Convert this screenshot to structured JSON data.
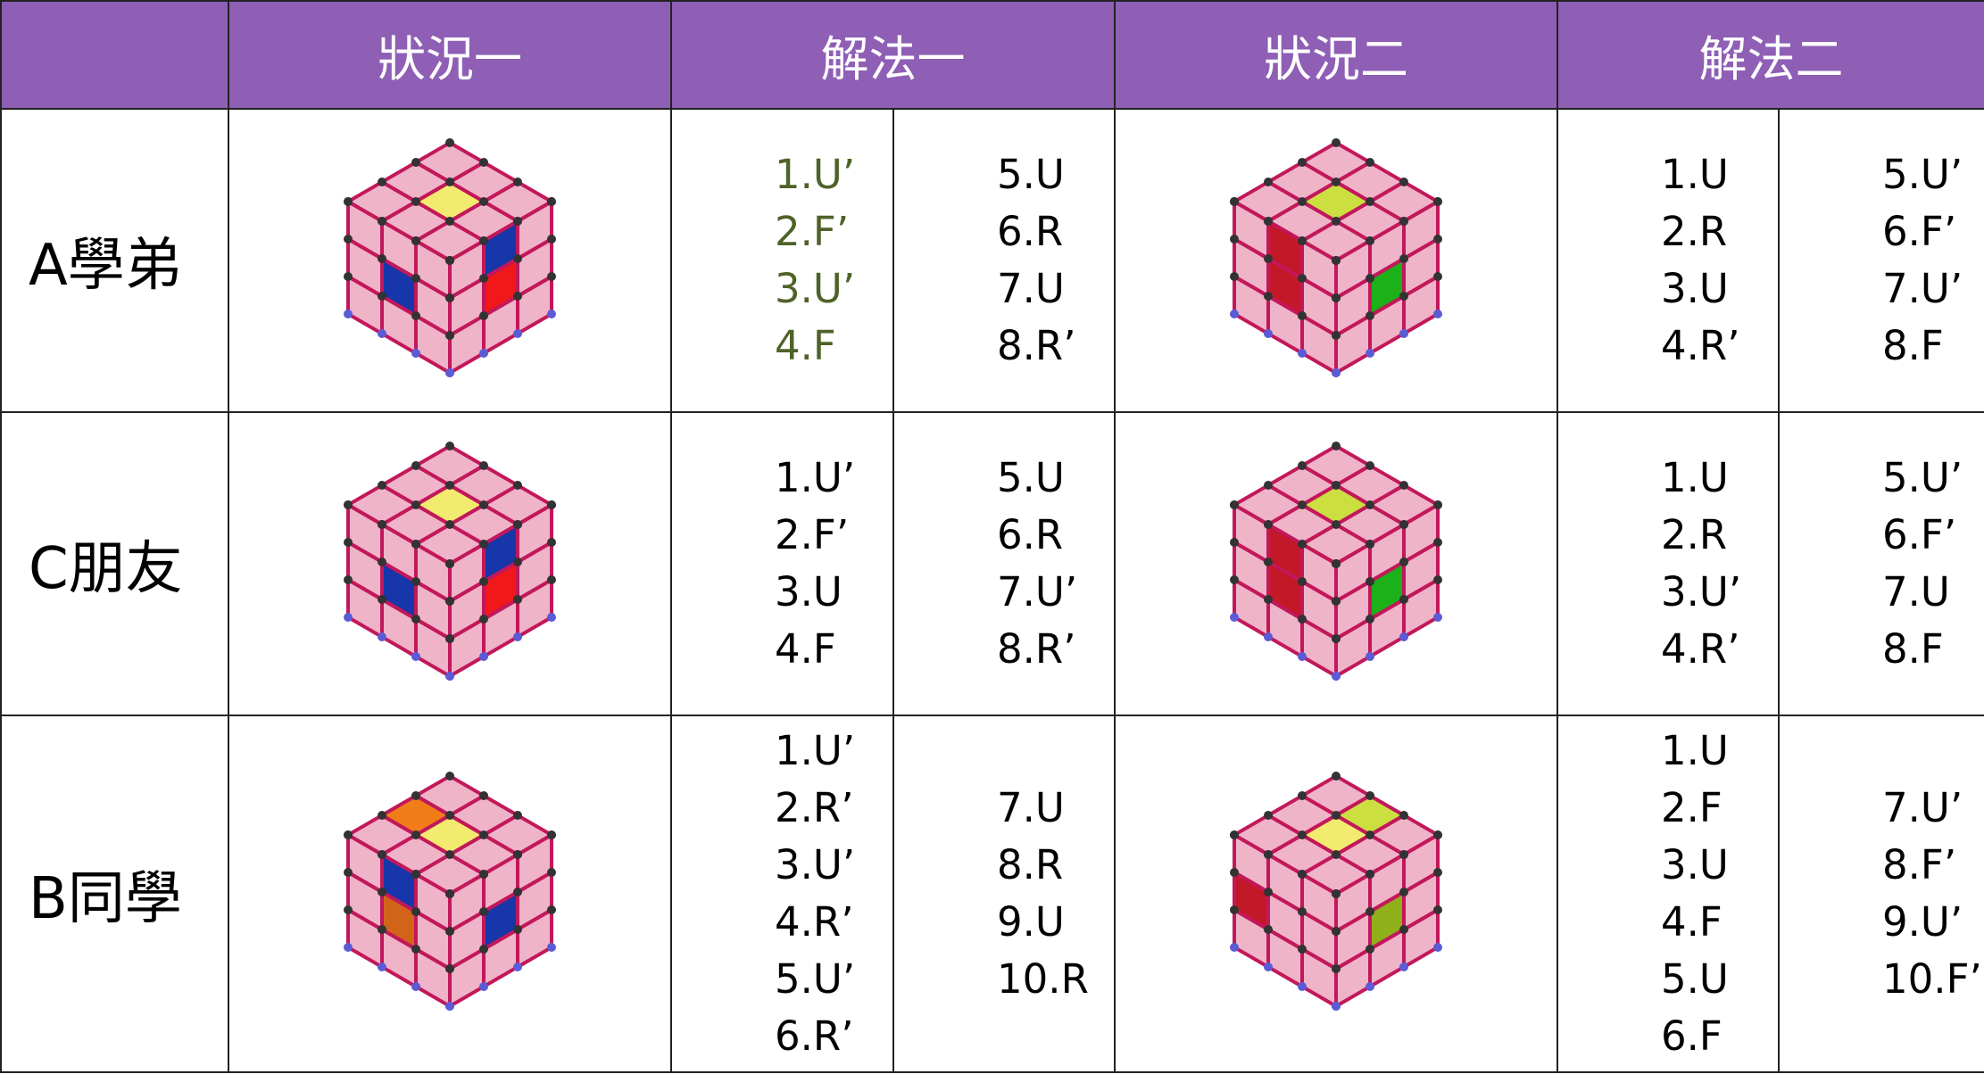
{
  "header": [
    "狀況一",
    "解法一",
    "狀況二",
    "解法二"
  ],
  "rows": [
    {
      "label": "A學弟",
      "solution1": [
        [
          "1.U’",
          "2.F’",
          "3.U’",
          "4.F"
        ],
        [
          "5.U",
          "6.R",
          "7.U",
          "8.R’"
        ]
      ],
      "solution2": [
        [
          "1.U",
          "2.R",
          "3.U",
          "4.R’"
        ],
        [
          "5.U’",
          "6.F’",
          "7.U’",
          "8.F"
        ]
      ]
    },
    {
      "label": "C朋友",
      "solution1": [
        [
          "1.U’",
          "2.F’",
          "3.U",
          "4.F"
        ],
        [
          "5.U",
          "6.R",
          "7.U’",
          "8.R’"
        ]
      ],
      "solution2": [
        [
          "1.U",
          "2.R",
          "3.U’",
          "4.R’"
        ],
        [
          "5.U’",
          "6.F’",
          "7.U",
          "8.F"
        ]
      ]
    },
    {
      "label": "B同學",
      "solution1": [
        [
          "1.U’",
          "2.R’",
          "3.U’",
          "4.R’",
          "5.U’",
          "6.R’"
        ],
        [
          "7.U",
          "8.R",
          "9.U",
          "10.R"
        ]
      ],
      "solution2": [
        [
          "1.U",
          "2.F",
          "3.U",
          "4.F",
          "5.U",
          "6.F"
        ],
        [
          "7.U’",
          "8.F’",
          "9.U’",
          "10.F’"
        ]
      ]
    }
  ]
}
